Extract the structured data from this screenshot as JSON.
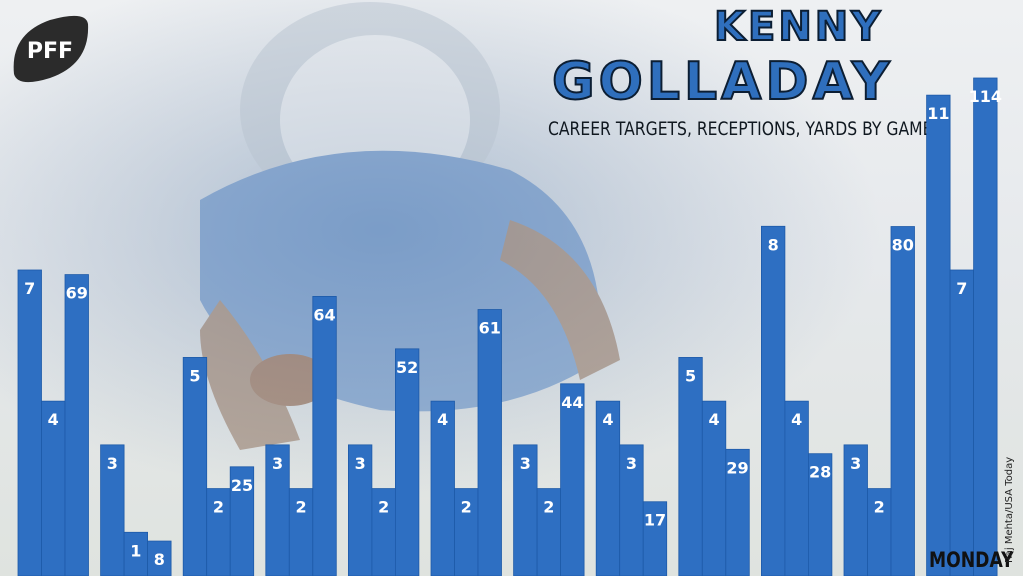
{
  "brand": {
    "logo_text": "PFF",
    "logo_icon": "football-logo"
  },
  "title": {
    "line1": "KENNY",
    "line2": "GOLLADAY"
  },
  "subtitle": "CAREER TARGETS, RECEPTIONS, YARDS BY GAME",
  "annotation": "MONDAY",
  "photo_credit": "Raj Mehta/USA Today",
  "colors": {
    "bar": "#2e6fc2",
    "bar_edge": "#1d5aa8",
    "title_fill": "#2f6fbd",
    "label": "#ffffff"
  },
  "chart_data": {
    "type": "bar",
    "title": "",
    "subtitle": "CAREER TARGETS, RECEPTIONS, YARDS BY GAME",
    "xlabel": "",
    "ylabel": "",
    "grid": false,
    "legend": "none",
    "series": [
      {
        "name": "",
        "values": [
          7,
          3,
          5,
          3,
          3,
          4,
          3,
          4,
          5,
          8,
          3,
          11
        ]
      },
      {
        "name": "",
        "values": [
          4,
          1,
          2,
          2,
          2,
          2,
          2,
          3,
          4,
          4,
          2,
          7
        ]
      },
      {
        "name": "",
        "values": [
          69,
          8,
          25,
          64,
          52,
          61,
          44,
          17,
          29,
          28,
          80,
          114
        ]
      }
    ],
    "games": 12
  }
}
